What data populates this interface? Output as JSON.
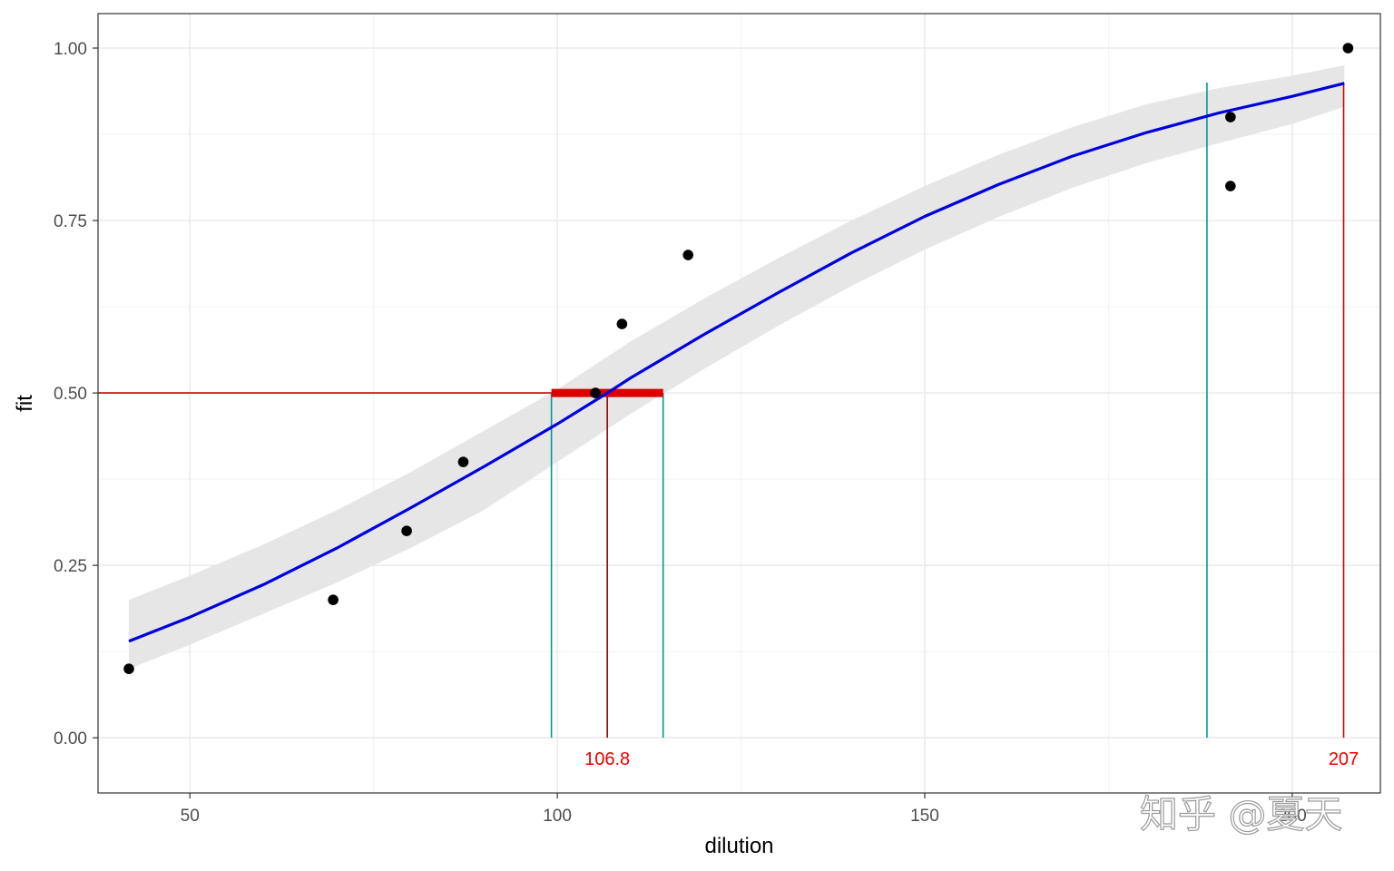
{
  "chart_data": {
    "type": "scatter",
    "xlabel": "dilution",
    "ylabel": "fit",
    "xlim": [
      37.5,
      212
    ],
    "ylim": [
      -0.08,
      1.05
    ],
    "x_ticks": [
      50,
      100,
      150,
      200
    ],
    "x_tick_labels": [
      "50",
      "100",
      "150",
      "200"
    ],
    "y_ticks": [
      0,
      0.25,
      0.5,
      0.75,
      1.0
    ],
    "y_tick_labels": [
      "0.00",
      "0.25",
      "0.50",
      "0.75",
      "1.00"
    ],
    "grid": true,
    "points": [
      {
        "x": 41.7,
        "y": 0.1
      },
      {
        "x": 69.5,
        "y": 0.2
      },
      {
        "x": 79.5,
        "y": 0.3
      },
      {
        "x": 87.2,
        "y": 0.4
      },
      {
        "x": 105.2,
        "y": 0.5
      },
      {
        "x": 108.8,
        "y": 0.6
      },
      {
        "x": 117.8,
        "y": 0.7
      },
      {
        "x": 191.6,
        "y": 0.8
      },
      {
        "x": 191.6,
        "y": 0.9
      },
      {
        "x": 207.6,
        "y": 1.0
      }
    ],
    "fit_curve": {
      "color": "#0000dd",
      "x": [
        41.7,
        50,
        60,
        70,
        80,
        90,
        100,
        106.8,
        110,
        120,
        130,
        140,
        150,
        160,
        170,
        180,
        190,
        200,
        207.1
      ],
      "y": [
        0.14,
        0.175,
        0.222,
        0.275,
        0.333,
        0.393,
        0.455,
        0.5,
        0.522,
        0.585,
        0.645,
        0.703,
        0.756,
        0.802,
        0.843,
        0.877,
        0.906,
        0.93,
        0.949
      ]
    },
    "confidence_band": {
      "color": "#e6e6e6",
      "x": [
        41.7,
        50,
        60,
        70,
        80,
        90,
        100,
        110,
        120,
        130,
        140,
        150,
        160,
        170,
        180,
        190,
        200,
        207.1
      ],
      "lower": [
        0.1,
        0.135,
        0.18,
        0.225,
        0.275,
        0.33,
        0.4,
        0.47,
        0.535,
        0.597,
        0.655,
        0.708,
        0.755,
        0.797,
        0.833,
        0.862,
        0.89,
        0.915
      ],
      "upper": [
        0.2,
        0.235,
        0.28,
        0.33,
        0.385,
        0.445,
        0.505,
        0.575,
        0.637,
        0.695,
        0.75,
        0.8,
        0.845,
        0.885,
        0.918,
        0.942,
        0.96,
        0.975
      ]
    },
    "reference_lines": {
      "red_color": "#cc0000",
      "dark_red_color": "#8b0000",
      "teal_color": "#009999",
      "horizontal_y": 0.5,
      "ed50_x": 106.8,
      "ed50_ci": [
        99.2,
        114.4
      ],
      "ed95_x": 207.0,
      "ed95_y": 0.949,
      "ed95_ci_lower": 188.4,
      "ci_top_y": 0.95
    },
    "annotations": [
      {
        "x": 106.8,
        "y": -0.03,
        "text": "106.8",
        "color": "#ee0000"
      },
      {
        "x": 207.0,
        "y": -0.03,
        "text": "207",
        "color": "#ee0000"
      }
    ]
  },
  "watermark": {
    "text": "知乎 @夏天"
  }
}
